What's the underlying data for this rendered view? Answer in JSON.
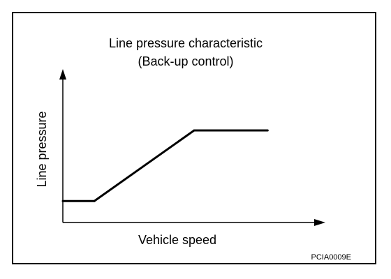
{
  "chart_data": {
    "type": "line",
    "title": "Line pressure characteristic",
    "subtitle": "(Back-up control)",
    "xlabel": "Vehicle speed",
    "ylabel": "Line pressure",
    "grid": false,
    "ticks": false,
    "x": [
      0,
      12,
      50,
      78
    ],
    "series": [
      {
        "values": [
          14,
          14,
          60,
          60
        ]
      }
    ],
    "xlim": [
      0,
      100
    ],
    "ylim": [
      0,
      100
    ]
  },
  "figure_code": "PCIA0009E",
  "colors": {
    "ink": "#000000",
    "background": "#ffffff"
  }
}
